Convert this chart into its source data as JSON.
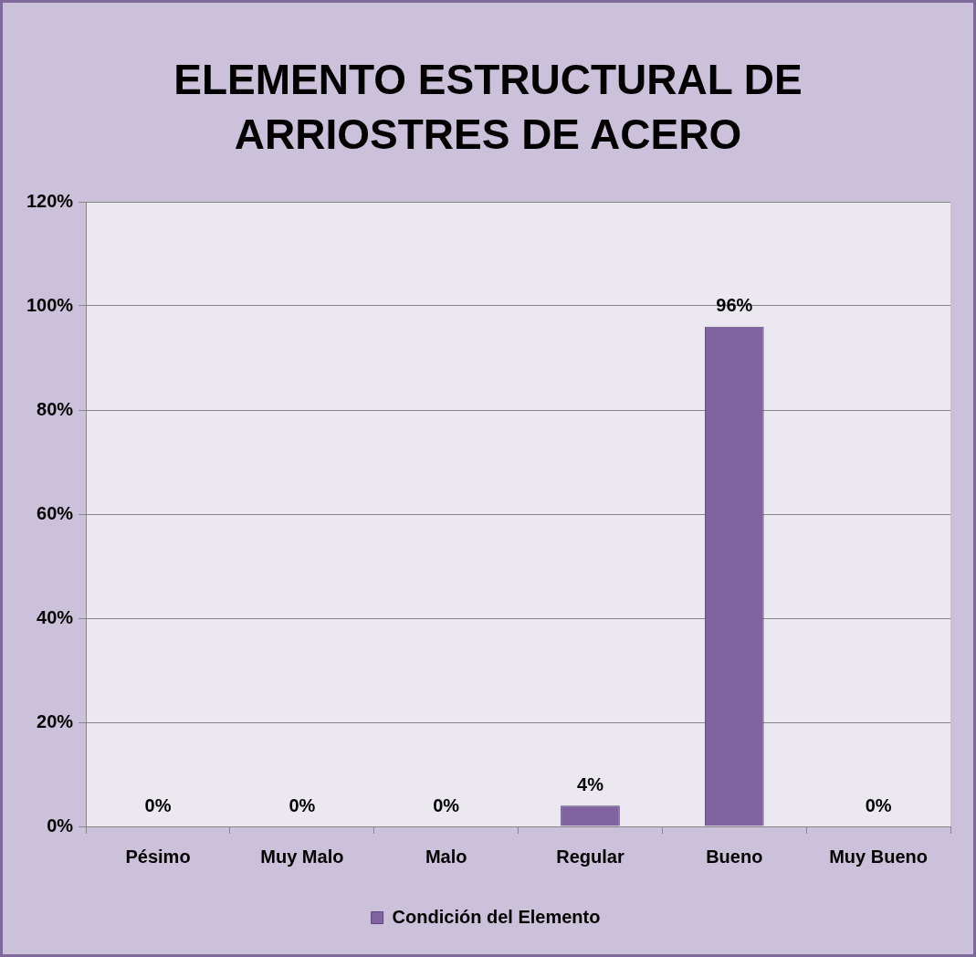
{
  "chart_data": {
    "type": "bar",
    "title": "ELEMENTO ESTRUCTURAL DE ARRIOSTRES DE ACERO",
    "categories": [
      "Pésimo",
      "Muy Malo",
      "Malo",
      "Regular",
      "Bueno",
      "Muy Bueno"
    ],
    "series": [
      {
        "name": "Condición del Elemento",
        "color": "#8064a2",
        "values": [
          0,
          0,
          0,
          4,
          96,
          0
        ],
        "value_labels": [
          "0%",
          "0%",
          "0%",
          "4%",
          "96%",
          "0%"
        ]
      }
    ],
    "ylim": [
      0,
      120
    ],
    "yticks": [
      {
        "value": 0,
        "label": "0%"
      },
      {
        "value": 20,
        "label": "20%"
      },
      {
        "value": 40,
        "label": "40%"
      },
      {
        "value": 60,
        "label": "60%"
      },
      {
        "value": 80,
        "label": "80%"
      },
      {
        "value": 100,
        "label": "100%"
      },
      {
        "value": 120,
        "label": "120%"
      }
    ],
    "grid": "y",
    "legend": "bottom"
  }
}
